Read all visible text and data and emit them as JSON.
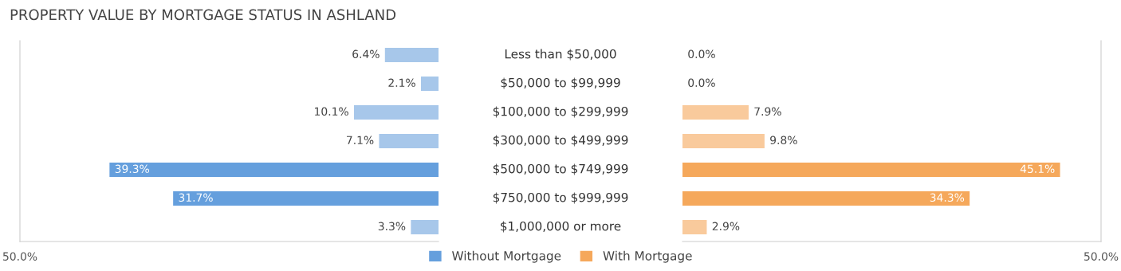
{
  "chart_data": [
    {
      "type": "bar",
      "orientation": "horizontal",
      "title": "PROPERTY VALUE BY MORTGAGE STATUS IN ASHLAND",
      "legend": "bottom",
      "categories": [
        "Less than $50,000",
        "$50,000 to $99,999",
        "$100,000 to $299,999",
        "$300,000 to $499,999",
        "$500,000 to $749,999",
        "$750,000 to $999,999",
        "$1,000,000 or more"
      ],
      "xlim": [
        50,
        0
      ],
      "xticks": [
        {
          "value": 50,
          "label": "50.0%"
        }
      ],
      "series": [
        {
          "name": "Without Mortgage",
          "color": "#659fdd",
          "colors": [
            "#a7c7ea",
            "#a7c7ea",
            "#a7c7ea",
            "#a7c7ea",
            "#659fdd",
            "#659fdd",
            "#a7c7ea"
          ],
          "values": [
            6.4,
            2.1,
            10.1,
            7.1,
            39.3,
            31.7,
            3.3
          ],
          "value_labels": [
            "6.4%",
            "2.1%",
            "10.1%",
            "7.1%",
            "39.3%",
            "31.7%",
            "3.3%"
          ]
        }
      ]
    },
    {
      "type": "bar",
      "orientation": "horizontal",
      "legend": "bottom",
      "tick_labels": "x",
      "categories": [
        null,
        null,
        null,
        null,
        null,
        null,
        null
      ],
      "xlim": [
        0,
        50
      ],
      "xticks": [
        {
          "value": 50,
          "label": "50.0%"
        }
      ],
      "series": [
        {
          "name": "With Mortgage",
          "color": "#f5a85b",
          "colors": [
            "#f9ca9c",
            "#f9ca9c",
            "#f9ca9c",
            "#f9ca9c",
            "#f5a85b",
            "#f5a85b",
            "#f9ca9c"
          ],
          "values": [
            0.0,
            0.0,
            7.9,
            9.8,
            45.1,
            34.3,
            2.9
          ],
          "value_labels": [
            "0.0%",
            "0.0%",
            "7.9%",
            "9.8%",
            "45.1%",
            "34.3%",
            "2.9%"
          ]
        }
      ]
    }
  ]
}
